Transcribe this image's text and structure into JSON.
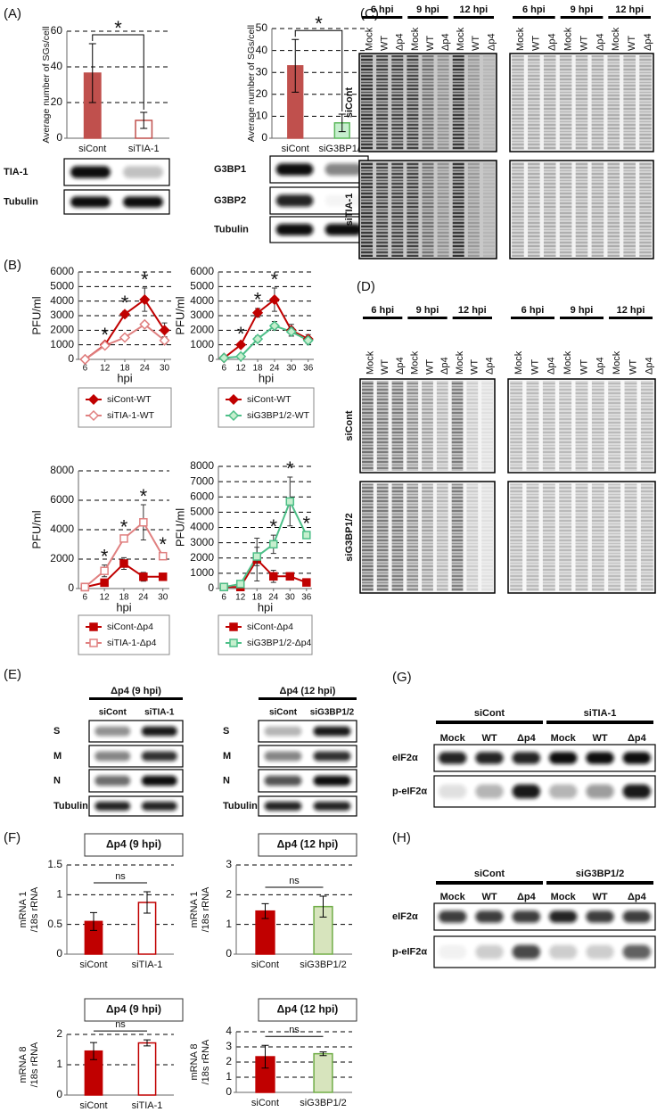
{
  "panels": [
    "(A)",
    "(B)",
    "(C)",
    "(D)",
    "(E)",
    "(F)",
    "(G)",
    "(H)"
  ],
  "chart_data": [
    {
      "type": "bar",
      "ylabel": "Average number of SGs/cell",
      "categories": [
        "siCont",
        "siTIA-1"
      ],
      "values": [
        36.5,
        10
      ],
      "errors": [
        16.5,
        4.5
      ],
      "colors": [
        "#c0504d",
        "#ffffff"
      ],
      "strokes": [
        "#c0504d",
        "#c0504d"
      ],
      "ylim": [
        0,
        60
      ],
      "yticks": [
        0,
        20,
        40,
        60
      ],
      "grid": true,
      "annotation": "*"
    },
    {
      "type": "bar",
      "ylabel": "Average number of SGs/cell",
      "categories": [
        "siCont",
        "siG3BP1/2"
      ],
      "values": [
        33,
        7
      ],
      "errors": [
        12,
        4
      ],
      "colors": [
        "#c0504d",
        "#c6efce"
      ],
      "strokes": [
        "#c0504d",
        "#5cb85c"
      ],
      "ylim": [
        0,
        50
      ],
      "yticks": [
        0,
        10,
        20,
        30,
        40,
        50
      ],
      "grid": true,
      "annotation": "*"
    },
    {
      "type": "line",
      "xlabel": "hpi",
      "ylabel": "PFU/ml",
      "x": [
        6,
        12,
        18,
        24,
        30
      ],
      "xlim": [
        4,
        32
      ],
      "xticks": [
        6,
        12,
        18,
        24,
        30
      ],
      "ylim": [
        0,
        6000
      ],
      "yticks": [
        0,
        1000,
        2000,
        3000,
        4000,
        5000,
        6000
      ],
      "grid": true,
      "legend": "bottom",
      "annotation": "*",
      "series": [
        {
          "name": "siCont-WT",
          "color": "#c00000",
          "fill": "#c00000",
          "marker": "diamond",
          "values": [
            0,
            1000,
            3100,
            4100,
            2000
          ],
          "errors": [
            0,
            100,
            200,
            800,
            500
          ]
        },
        {
          "name": "siTIA-1-WT",
          "color": "#e08080",
          "fill": "#ffffff",
          "marker": "diamond",
          "values": [
            0,
            950,
            1500,
            2400,
            1300
          ],
          "errors": [
            0,
            100,
            150,
            150,
            250
          ]
        }
      ]
    },
    {
      "type": "line",
      "xlabel": "hpi",
      "ylabel": "PFU/ml",
      "x": [
        6,
        12,
        18,
        24,
        30,
        36
      ],
      "xlim": [
        4,
        38
      ],
      "xticks": [
        6,
        12,
        18,
        24,
        30,
        36
      ],
      "ylim": [
        0,
        6000
      ],
      "yticks": [
        0,
        1000,
        2000,
        3000,
        4000,
        5000,
        6000
      ],
      "grid": true,
      "legend": "bottom",
      "annotation": "*",
      "series": [
        {
          "name": "siCont-WT",
          "color": "#c00000",
          "fill": "#c00000",
          "marker": "diamond",
          "values": [
            100,
            1000,
            3200,
            4100,
            2000,
            1400
          ],
          "errors": [
            50,
            150,
            300,
            800,
            400,
            300
          ]
        },
        {
          "name": "siG3BP1/2-WT",
          "color": "#4dbf88",
          "fill": "#c6efce",
          "marker": "diamond",
          "values": [
            100,
            200,
            1400,
            2300,
            1900,
            1300
          ],
          "errors": [
            50,
            50,
            200,
            300,
            300,
            200
          ]
        }
      ]
    },
    {
      "type": "line",
      "xlabel": "hpi",
      "ylabel": "PFU/ml",
      "x": [
        6,
        12,
        18,
        24,
        30
      ],
      "xlim": [
        4,
        32
      ],
      "xticks": [
        6,
        12,
        18,
        24,
        30
      ],
      "ylim": [
        0,
        8000
      ],
      "yticks": [
        0,
        2000,
        4000,
        6000,
        8000
      ],
      "grid": true,
      "legend": "bottom",
      "annotation": "*",
      "series": [
        {
          "name": "siCont-Δp4",
          "color": "#c00000",
          "fill": "#c00000",
          "marker": "square",
          "values": [
            100,
            400,
            1700,
            800,
            800
          ],
          "errors": [
            50,
            150,
            400,
            300,
            100
          ]
        },
        {
          "name": "siTIA-1-Δp4",
          "color": "#e08080",
          "fill": "#ffffff",
          "marker": "square",
          "values": [
            100,
            1200,
            3400,
            4500,
            2200
          ],
          "errors": [
            50,
            400,
            200,
            1200,
            200
          ]
        }
      ]
    },
    {
      "type": "line",
      "xlabel": "hpi",
      "ylabel": "PFU/ml",
      "x": [
        6,
        12,
        18,
        24,
        30,
        36
      ],
      "xlim": [
        4,
        38
      ],
      "xticks": [
        6,
        12,
        18,
        24,
        30,
        36
      ],
      "ylim": [
        0,
        8000
      ],
      "yticks": [
        0,
        1000,
        2000,
        3000,
        4000,
        5000,
        6000,
        7000,
        8000
      ],
      "grid": true,
      "legend": "bottom",
      "annotation": "*",
      "series": [
        {
          "name": "siCont-Δp4",
          "color": "#c00000",
          "fill": "#c00000",
          "marker": "square",
          "values": [
            100,
            100,
            1900,
            800,
            800,
            400
          ],
          "errors": [
            50,
            50,
            1400,
            400,
            100,
            100
          ]
        },
        {
          "name": "siG3BP1/2-Δp4",
          "color": "#4dbf88",
          "fill": "#c6efce",
          "marker": "square",
          "values": [
            100,
            300,
            2100,
            2900,
            5700,
            3500
          ],
          "errors": [
            50,
            100,
            600,
            600,
            1600,
            200
          ]
        }
      ]
    },
    {
      "type": "bar",
      "title": "Δp4 (9 hpi)",
      "ylabel": [
        "mRNA 1",
        "/18s rRNA"
      ],
      "categories": [
        "siCont",
        "siTIA-1"
      ],
      "values": [
        0.55,
        0.87
      ],
      "errors": [
        0.15,
        0.18
      ],
      "colors": [
        "#c00000",
        "#ffffff"
      ],
      "strokes": [
        "#c00000",
        "#c00000"
      ],
      "ylim": [
        0,
        1.5
      ],
      "yticks": [
        0,
        0.5,
        1,
        1.5
      ],
      "grid": true,
      "annotation": "ns"
    },
    {
      "type": "bar",
      "title": "Δp4 (12 hpi)",
      "ylabel": [
        "mRNA 1",
        "/18s rRNA"
      ],
      "categories": [
        "siCont",
        "siG3BP1/2"
      ],
      "values": [
        1.45,
        1.6
      ],
      "errors": [
        0.25,
        0.35
      ],
      "colors": [
        "#c00000",
        "#d7e4bd"
      ],
      "strokes": [
        "#c00000",
        "#70ad47"
      ],
      "ylim": [
        0,
        3
      ],
      "yticks": [
        0,
        1,
        2,
        3
      ],
      "grid": true,
      "annotation": "ns"
    },
    {
      "type": "bar",
      "title": "Δp4 (9 hpi)",
      "ylabel": [
        "mRNA 8",
        "/18s rRNA"
      ],
      "categories": [
        "siCont",
        "siTIA-1"
      ],
      "values": [
        1.45,
        1.72
      ],
      "errors": [
        0.28,
        0.1
      ],
      "colors": [
        "#c00000",
        "#ffffff"
      ],
      "strokes": [
        "#c00000",
        "#c00000"
      ],
      "ylim": [
        0,
        2
      ],
      "yticks": [
        0,
        1,
        2
      ],
      "grid": true,
      "annotation": "ns"
    },
    {
      "type": "bar",
      "title": "Δp4 (12 hpi)",
      "ylabel": [
        "mRNA 8",
        "/18s rRNA"
      ],
      "categories": [
        "siCont",
        "siG3BP1/2"
      ],
      "values": [
        2.35,
        2.55
      ],
      "errors": [
        0.75,
        0.12
      ],
      "colors": [
        "#c00000",
        "#d7e4bd"
      ],
      "strokes": [
        "#c00000",
        "#70ad47"
      ],
      "ylim": [
        0,
        4
      ],
      "yticks": [
        0,
        1,
        2,
        3,
        4
      ],
      "grid": true,
      "annotation": "ns"
    }
  ],
  "blots": {
    "A1": {
      "rows": [
        "TIA-1",
        "Tubulin"
      ]
    },
    "A2": {
      "rows": [
        "G3BP1",
        "G3BP2",
        "Tubulin"
      ]
    },
    "C": {
      "timepoints": [
        "6 hpi",
        "9 hpi",
        "12 hpi"
      ],
      "lanes": [
        "Mock",
        "WT",
        "Δp4"
      ],
      "rows": [
        "siCont",
        "siTIA-1"
      ]
    },
    "D": {
      "timepoints": [
        "6 hpi",
        "9 hpi",
        "12 hpi"
      ],
      "lanes": [
        "Mock",
        "WT",
        "Δp4"
      ],
      "rows": [
        "siCont",
        "siG3BP1/2"
      ]
    },
    "E1": {
      "title": "Δp4 (9 hpi)",
      "groups": [
        "siCont",
        "siTIA-1"
      ],
      "rows": [
        "S",
        "M",
        "N",
        "Tubulin"
      ]
    },
    "E2": {
      "title": "Δp4 (12 hpi)",
      "groups": [
        "siCont",
        "siG3BP1/2"
      ],
      "rows": [
        "S",
        "M",
        "N",
        "Tubulin"
      ]
    },
    "G": {
      "groups": [
        "siCont",
        "siTIA-1"
      ],
      "lanes": [
        "Mock",
        "WT",
        "Δp4"
      ],
      "rows": [
        "eIF2α",
        "p-eIF2α"
      ]
    },
    "H": {
      "groups": [
        "siCont",
        "siG3BP1/2"
      ],
      "lanes": [
        "Mock",
        "WT",
        "Δp4"
      ],
      "rows": [
        "eIF2α",
        "p-eIF2α"
      ]
    }
  }
}
